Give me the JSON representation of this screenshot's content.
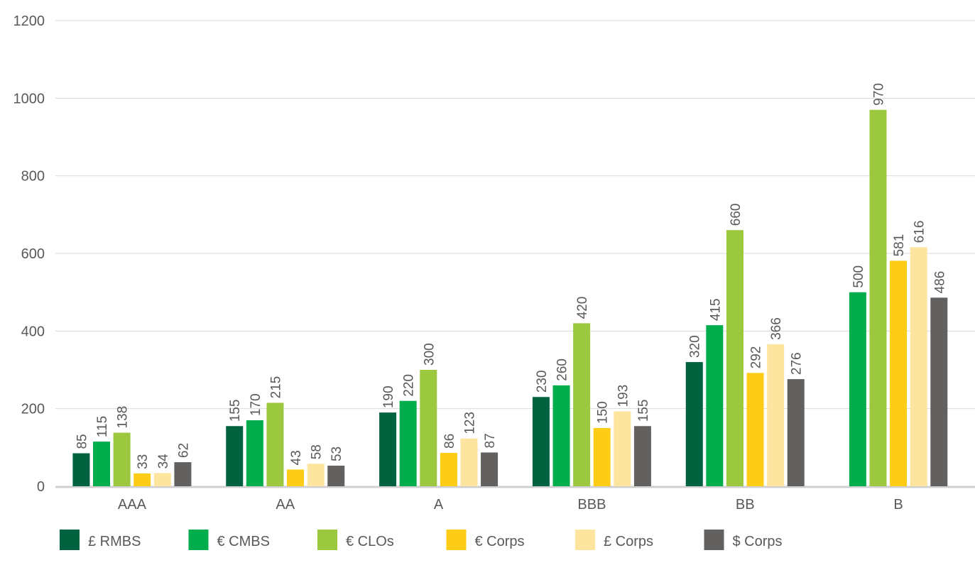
{
  "chart_data": {
    "type": "bar",
    "categories": [
      "AAA",
      "AA",
      "A",
      "BBB",
      "BB",
      "B"
    ],
    "series": [
      {
        "name": "£ RMBS",
        "color": "#00623f",
        "values": [
          85,
          155,
          190,
          230,
          320,
          null
        ]
      },
      {
        "name": "€ CMBS",
        "color": "#00ad4d",
        "values": [
          115,
          170,
          220,
          260,
          415,
          500
        ]
      },
      {
        "name": "€ CLOs",
        "color": "#9bc83f",
        "values": [
          138,
          215,
          300,
          420,
          660,
          970
        ]
      },
      {
        "name": "€ Corps",
        "color": "#fccc17",
        "values": [
          33,
          43,
          86,
          150,
          292,
          581
        ]
      },
      {
        "name": "£ Corps",
        "color": "#fde5a0",
        "values": [
          34,
          58,
          123,
          193,
          366,
          616
        ]
      },
      {
        "name": "$ Corps",
        "color": "#626160",
        "values": [
          62,
          53,
          87,
          155,
          276,
          486
        ]
      }
    ],
    "yticks": [
      0,
      200,
      400,
      600,
      800,
      1000,
      1200
    ],
    "ylim": [
      0,
      1200
    ],
    "grid": true,
    "data_labels": true,
    "legend": "bottom"
  }
}
